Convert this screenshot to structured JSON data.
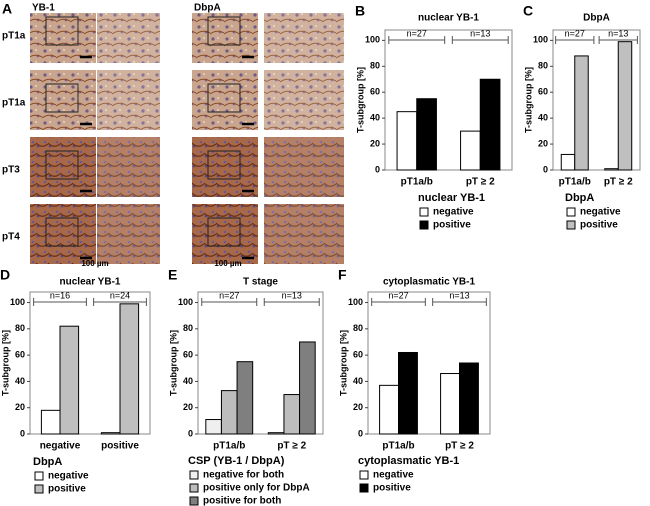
{
  "panel_a": {
    "panel": "A",
    "columns": [
      "YB-1",
      "DbpA"
    ],
    "rows": [
      "pT1a",
      "pT1a",
      "pT3",
      "pT4"
    ],
    "scale_labels": [
      "100 µm",
      "100 µm"
    ]
  },
  "chart_data": [
    {
      "type": "bar",
      "panel": "B",
      "title": "nuclear YB-1",
      "y_label": "T-subgroup [%]",
      "annotations": [
        "n=27",
        "n=13"
      ],
      "categories": [
        "pT1a/b",
        "pT ≥ 2"
      ],
      "legend_title": "nuclear YB-1",
      "series": [
        {
          "name": "negative",
          "color": "#ffffff",
          "values": [
            45,
            30
          ]
        },
        {
          "name": "positive",
          "color": "#000000",
          "values": [
            55,
            70
          ]
        }
      ],
      "ylim": [
        0,
        108
      ],
      "yticks": [
        0,
        20,
        40,
        60,
        80,
        100
      ]
    },
    {
      "type": "bar",
      "panel": "C",
      "title": "DbpA",
      "y_label": "T-subgroup [%]",
      "annotations": [
        "n=27",
        "n=13"
      ],
      "categories": [
        "pT1a/b",
        "pT ≥ 2"
      ],
      "legend_title": "DbpA",
      "series": [
        {
          "name": "negative",
          "color": "#ffffff",
          "values": [
            12,
            1
          ]
        },
        {
          "name": "positive",
          "color": "#bfbfbf",
          "values": [
            88,
            99
          ]
        }
      ],
      "ylim": [
        0,
        108
      ],
      "yticks": [
        0,
        20,
        40,
        60,
        80,
        100
      ]
    },
    {
      "type": "bar",
      "panel": "D",
      "title": "nuclear YB-1",
      "y_label": "T-subgroup [%]",
      "annotations": [
        "n=16",
        "n=24"
      ],
      "categories": [
        "negative",
        "positive"
      ],
      "legend_title": "DbpA",
      "series": [
        {
          "name": "negative",
          "color": "#ffffff",
          "values": [
            18,
            1
          ]
        },
        {
          "name": "positive",
          "color": "#bfbfbf",
          "values": [
            82,
            99
          ]
        }
      ],
      "ylim": [
        0,
        108
      ],
      "yticks": [
        0,
        20,
        40,
        60,
        80,
        100
      ]
    },
    {
      "type": "bar",
      "panel": "E",
      "title": "T stage",
      "y_label": "T-subgroup [%]",
      "annotations": [
        "n=27",
        "n=13"
      ],
      "categories": [
        "pT1a/b",
        "pT ≥ 2"
      ],
      "legend_title": "CSP (YB-1 / DbpA)",
      "series": [
        {
          "name": "negative for both",
          "color": "#efefef",
          "values": [
            11,
            1
          ]
        },
        {
          "name": "positive only for DbpA",
          "color": "#bdbdbd",
          "values": [
            33,
            30
          ]
        },
        {
          "name": "positive for both",
          "color": "#7f7f7f",
          "values": [
            55,
            70
          ]
        }
      ],
      "ylim": [
        0,
        108
      ],
      "yticks": [
        0,
        20,
        40,
        60,
        80,
        100
      ]
    },
    {
      "type": "bar",
      "panel": "F",
      "title": "cytoplasmatic YB-1",
      "y_label": "T-subgroup [%]",
      "annotations": [
        "n=27",
        "n=13"
      ],
      "categories": [
        "pT1a/b",
        "pT ≥ 2"
      ],
      "legend_title": "cytoplasmatic YB-1",
      "series": [
        {
          "name": "negative",
          "color": "#ffffff",
          "values": [
            37,
            46
          ]
        },
        {
          "name": "positive",
          "color": "#000000",
          "values": [
            62,
            54
          ]
        }
      ],
      "ylim": [
        0,
        108
      ],
      "yticks": [
        0,
        20,
        40,
        60,
        80,
        100
      ]
    }
  ]
}
